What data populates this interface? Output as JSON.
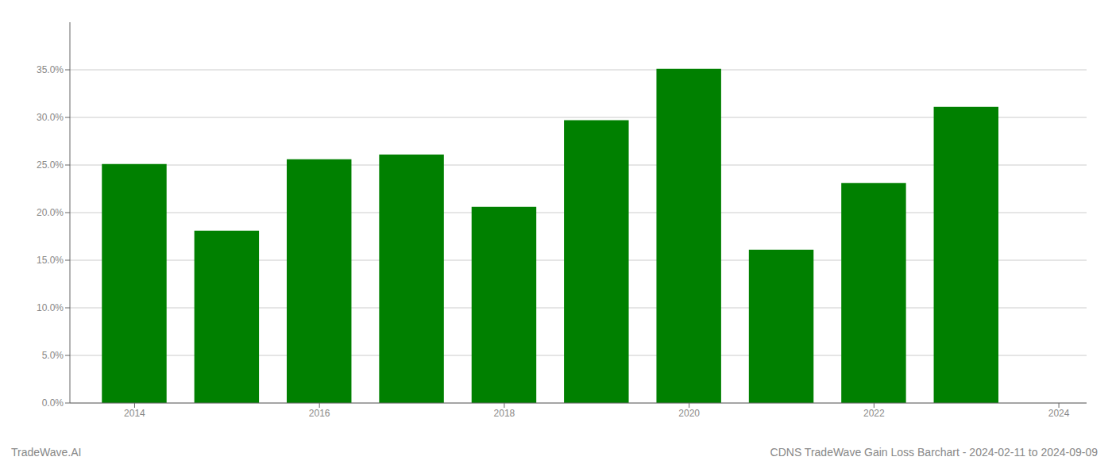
{
  "chart_data": {
    "type": "bar",
    "title": "CDNS TradeWave Gain Loss Barchart - 2024-02-11 to 2024-09-09",
    "annotations": [
      "TradeWave.AI"
    ],
    "x": [
      2014,
      2015,
      2016,
      2017,
      2018,
      2019,
      2020,
      2021,
      2022,
      2023
    ],
    "values": [
      0.251,
      0.181,
      0.256,
      0.261,
      0.206,
      0.297,
      0.351,
      0.161,
      0.231,
      0.311
    ],
    "color": "#008000",
    "xlim": [
      2013.3,
      2024.3
    ],
    "xticks": [
      2014,
      2016,
      2018,
      2020,
      2022,
      2024
    ],
    "ylim": [
      0,
      0.4
    ],
    "yticks": [
      {
        "value": 0.0,
        "label": "0.0%"
      },
      {
        "value": 0.05,
        "label": "5.0%"
      },
      {
        "value": 0.1,
        "label": "10.0%"
      },
      {
        "value": 0.15,
        "label": "15.0%"
      },
      {
        "value": 0.2,
        "label": "20.0%"
      },
      {
        "value": 0.25,
        "label": "25.0%"
      },
      {
        "value": 0.3,
        "label": "30.0%"
      },
      {
        "value": 0.35,
        "label": "35.0%"
      }
    ],
    "grid": true
  }
}
